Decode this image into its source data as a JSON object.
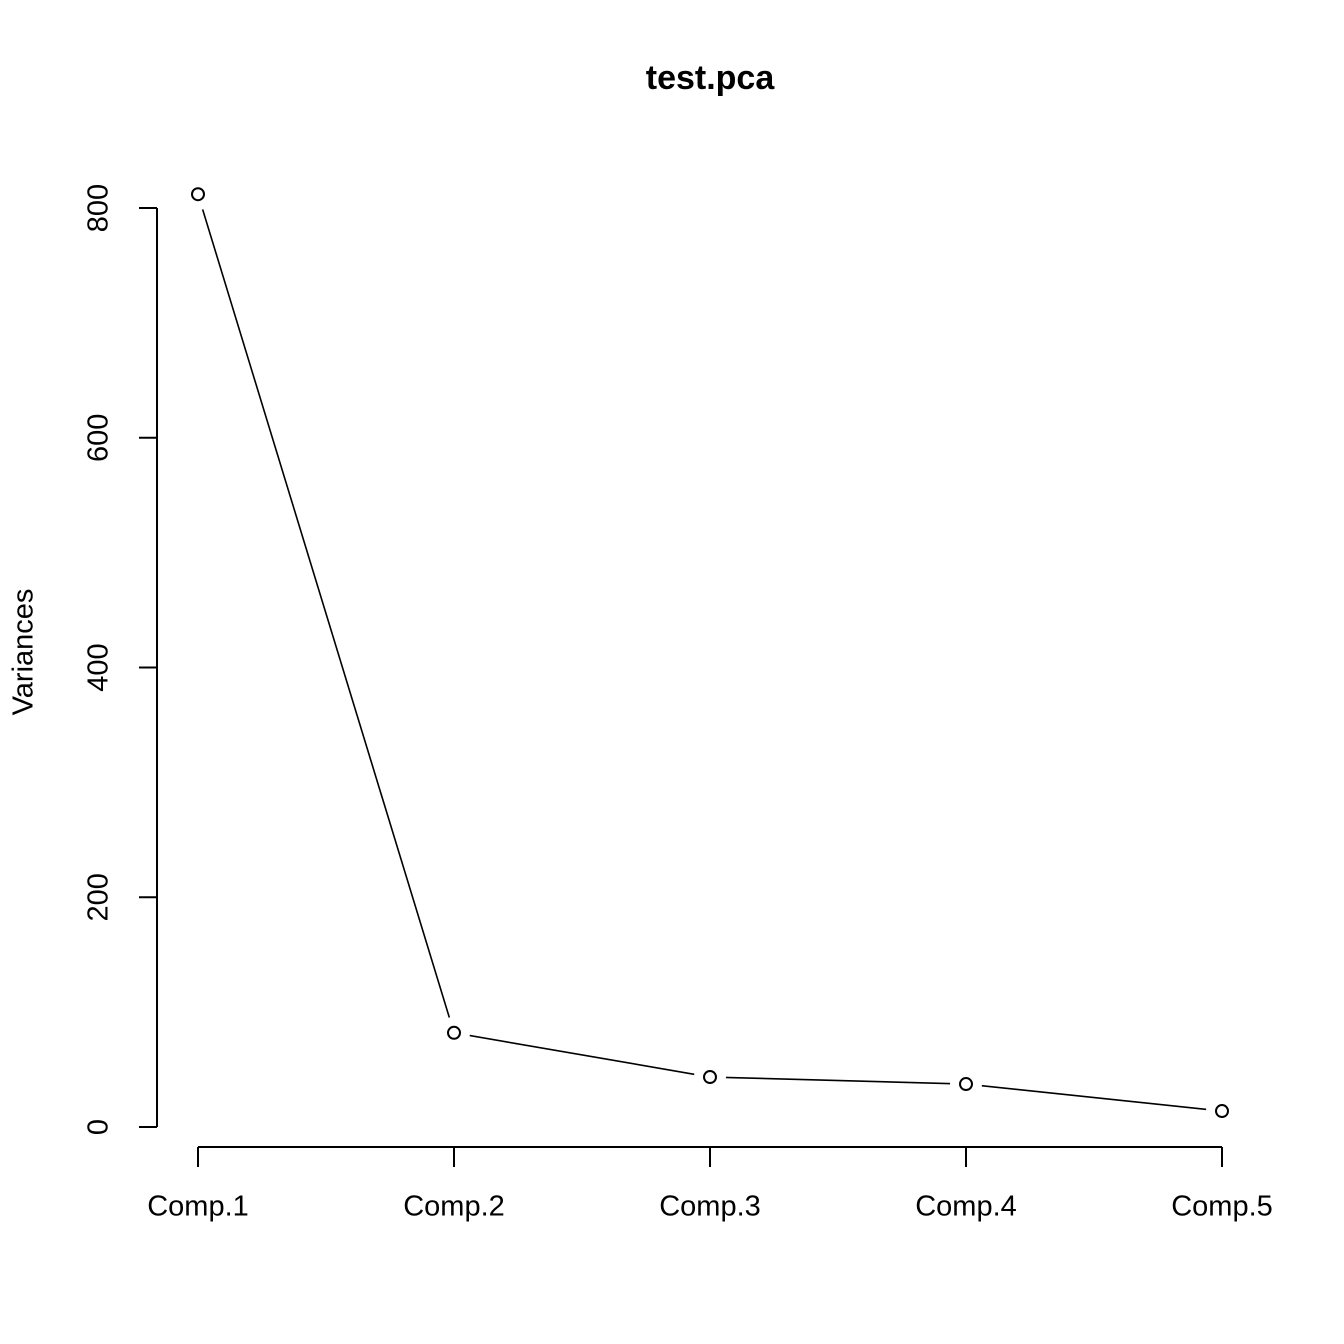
{
  "chart_data": {
    "type": "line",
    "title": "test.pca",
    "ylabel": "Variances",
    "categories": [
      "Comp.1",
      "Comp.2",
      "Comp.3",
      "Comp.4",
      "Comp.5"
    ],
    "values": [
      812,
      82,
      43.5,
      37.4,
      13.9
    ],
    "color": "#000000",
    "ylim": [
      0,
      800
    ],
    "yticks": [
      0,
      200,
      400,
      600,
      800
    ],
    "grid": false
  }
}
